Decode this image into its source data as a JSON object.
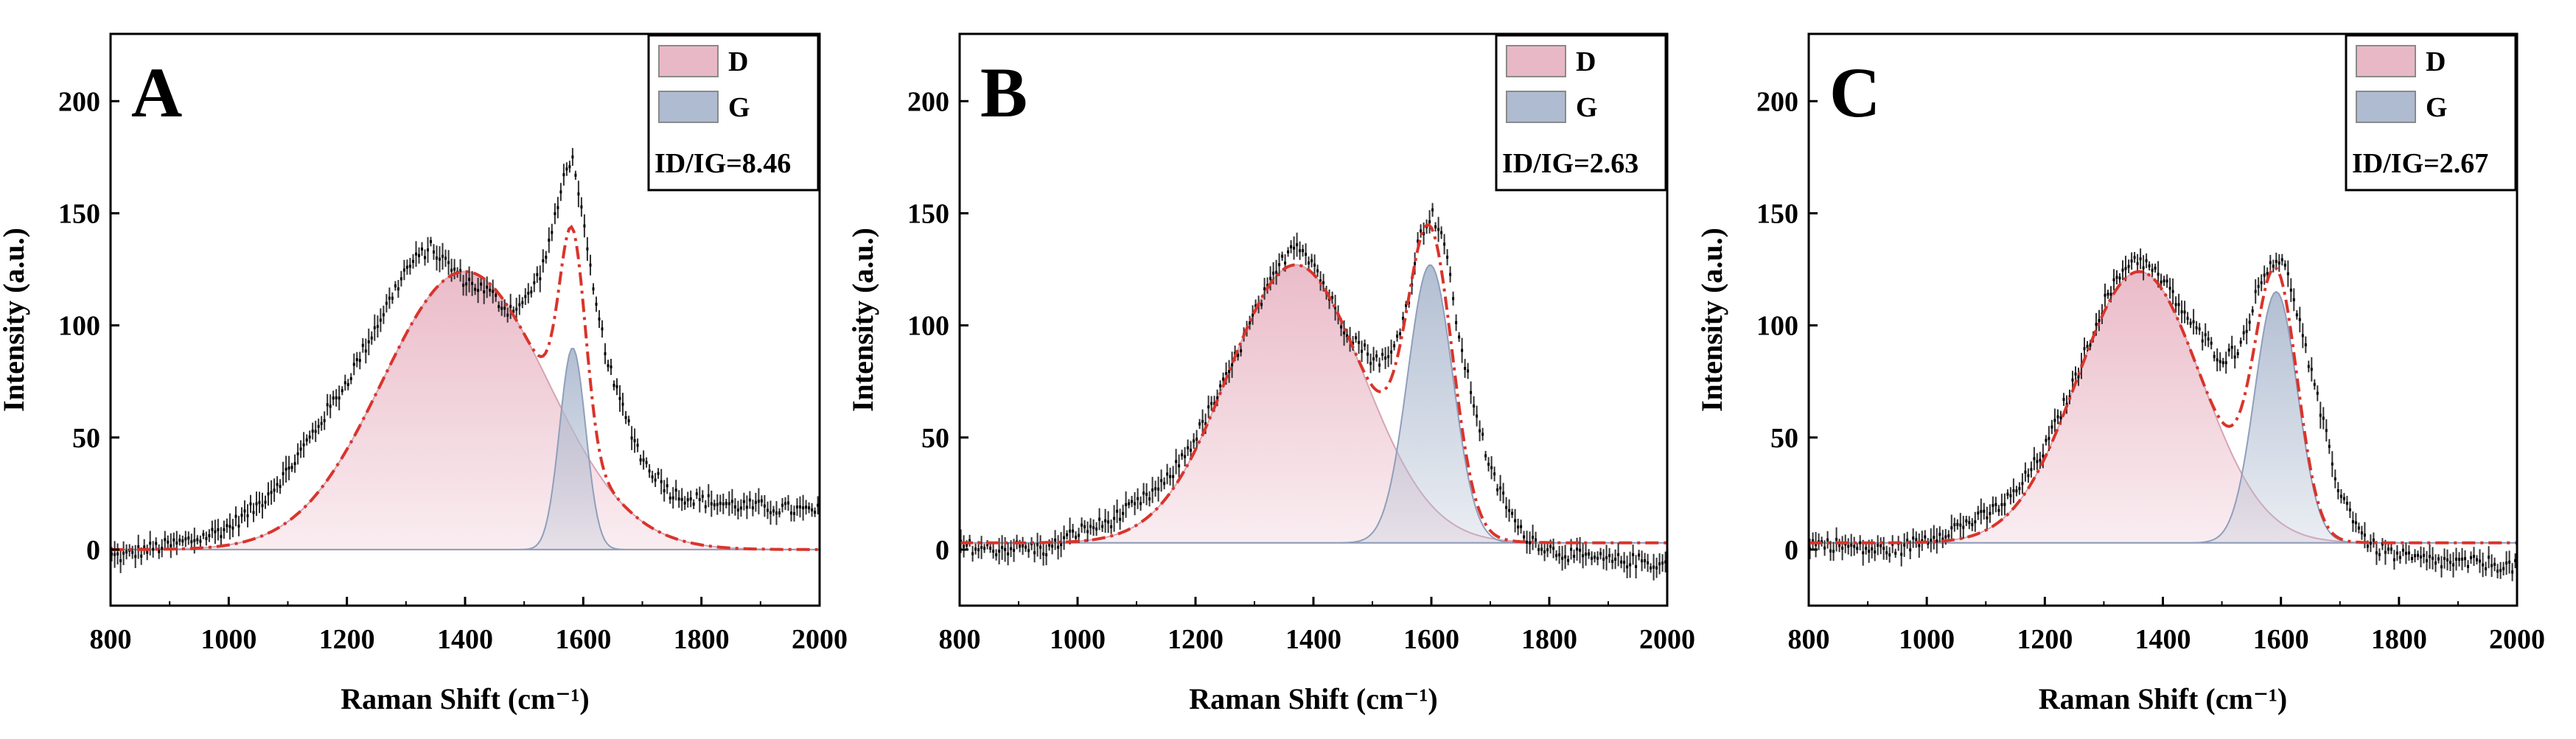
{
  "chart_data": [
    {
      "type": "area",
      "panel_label": "A",
      "xlabel": "Raman Shift (cm⁻¹)",
      "ylabel": "Intensity (a.u.)",
      "xlim": [
        800,
        2000
      ],
      "ylim": [
        -25,
        230
      ],
      "xticks": [
        "800",
        "1000",
        "1200",
        "1400",
        "1600",
        "1800",
        "2000"
      ],
      "yticks": [
        "0",
        "50",
        "100",
        "150",
        "200"
      ],
      "legend": {
        "position": "top-right",
        "entries": [
          "D",
          "G"
        ]
      },
      "annotation": "ID/IG=8.46",
      "peaks": [
        {
          "name": "D",
          "center": 1400,
          "height": 124,
          "width_sigma": 140,
          "color": "#e9b8c6"
        },
        {
          "name": "G",
          "center": 1582,
          "height": 90,
          "width_sigma": 22,
          "color": "#aebbd0"
        }
      ],
      "baseline": 0,
      "tail_level": 15,
      "raw_points": {
        "x": [
          820,
          860,
          900,
          950,
          1000,
          1050,
          1100,
          1150,
          1200,
          1250,
          1300,
          1340,
          1360,
          1400,
          1440,
          1470,
          1500,
          1530,
          1555,
          1570,
          1580,
          1590,
          1600,
          1620,
          1650,
          1700,
          1750,
          1800,
          1850,
          1900,
          1950,
          1990
        ],
        "y": [
          -3,
          0,
          2,
          5,
          10,
          20,
          35,
          55,
          75,
          100,
          125,
          135,
          130,
          120,
          115,
          107,
          110,
          125,
          150,
          170,
          175,
          165,
          145,
          110,
          75,
          40,
          25,
          22,
          20,
          19,
          18,
          17
        ]
      }
    },
    {
      "type": "area",
      "panel_label": "B",
      "xlabel": "Raman Shift (cm⁻¹)",
      "ylabel": "Intensity (a.u.)",
      "xlim": [
        800,
        2000
      ],
      "ylim": [
        -25,
        230
      ],
      "xticks": [
        "800",
        "1000",
        "1200",
        "1400",
        "1600",
        "1800",
        "2000"
      ],
      "yticks": [
        "0",
        "50",
        "100",
        "150",
        "200"
      ],
      "legend": {
        "position": "top-right",
        "entries": [
          "D",
          "G"
        ]
      },
      "annotation": "ID/IG=2.63",
      "peaks": [
        {
          "name": "D",
          "center": 1370,
          "height": 124,
          "width_sigma": 115,
          "color": "#e9b8c6"
        },
        {
          "name": "G",
          "center": 1598,
          "height": 124,
          "width_sigma": 38,
          "color": "#aebbd0"
        }
      ],
      "baseline": 3,
      "tail_level": -5,
      "raw_points": {
        "x": [
          800,
          850,
          900,
          950,
          1000,
          1050,
          1100,
          1150,
          1200,
          1250,
          1300,
          1350,
          1370,
          1400,
          1450,
          1500,
          1530,
          1560,
          1580,
          1600,
          1620,
          1650,
          1700,
          1750,
          1800,
          1850,
          1900,
          1950,
          2000
        ],
        "y": [
          2,
          0,
          1,
          0,
          8,
          12,
          20,
          30,
          50,
          75,
          105,
          130,
          138,
          128,
          100,
          85,
          85,
          110,
          140,
          150,
          140,
          90,
          35,
          8,
          0,
          -3,
          -5,
          -5,
          -7
        ]
      }
    },
    {
      "type": "area",
      "panel_label": "C",
      "xlabel": "Raman Shift (cm⁻¹)",
      "ylabel": "Intensity (a.u.)",
      "xlim": [
        800,
        2000
      ],
      "ylim": [
        -25,
        230
      ],
      "xticks": [
        "800",
        "1000",
        "1200",
        "1400",
        "1600",
        "1800",
        "2000"
      ],
      "yticks": [
        "0",
        "50",
        "100",
        "150",
        "200"
      ],
      "legend": {
        "position": "top-right",
        "entries": [
          "D",
          "G"
        ]
      },
      "annotation": "ID/IG=2.67",
      "peaks": [
        {
          "name": "D",
          "center": 1360,
          "height": 121,
          "width_sigma": 105,
          "color": "#e9b8c6"
        },
        {
          "name": "G",
          "center": 1592,
          "height": 112,
          "width_sigma": 36,
          "color": "#aebbd0"
        }
      ],
      "baseline": 3,
      "tail_level": -6,
      "raw_points": {
        "x": [
          800,
          850,
          900,
          950,
          1000,
          1050,
          1100,
          1150,
          1200,
          1250,
          1300,
          1340,
          1360,
          1400,
          1450,
          1500,
          1530,
          1560,
          1580,
          1600,
          1620,
          1650,
          1700,
          1750,
          1800,
          1850,
          1900,
          1950,
          2000
        ],
        "y": [
          3,
          2,
          0,
          0,
          5,
          10,
          15,
          25,
          45,
          75,
          110,
          128,
          130,
          120,
          100,
          85,
          90,
          115,
          128,
          130,
          115,
          80,
          25,
          2,
          -3,
          -5,
          -6,
          -6,
          -8
        ]
      }
    }
  ]
}
